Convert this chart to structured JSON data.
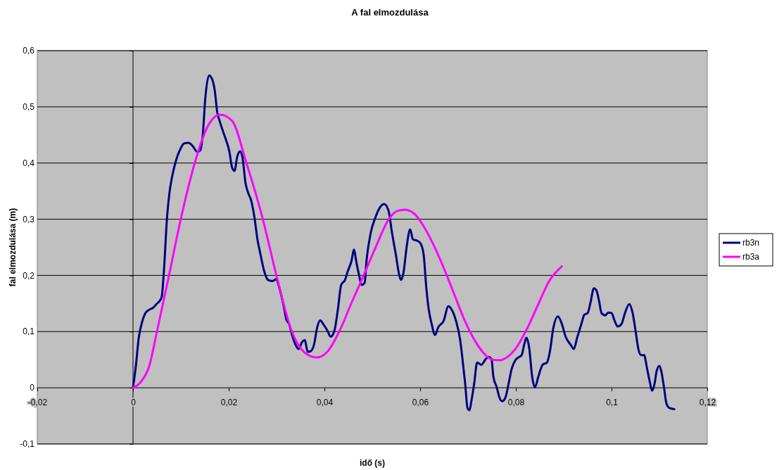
{
  "chart_data": {
    "type": "line",
    "title": "A fal elmozdulása",
    "xlabel": "idő (s)",
    "ylabel": "fal elmozdulása (m)",
    "xlim": [
      -0.02,
      0.12
    ],
    "ylim": [
      -0.1,
      0.6
    ],
    "xticks": [
      {
        "value": -0.02,
        "label": "-0,02"
      },
      {
        "value": 0,
        "label": "0"
      },
      {
        "value": 0.02,
        "label": "0,02"
      },
      {
        "value": 0.04,
        "label": "0,04"
      },
      {
        "value": 0.06,
        "label": "0,06"
      },
      {
        "value": 0.08,
        "label": "0,08"
      },
      {
        "value": 0.1,
        "label": "0,1"
      },
      {
        "value": 0.12,
        "label": "0,12"
      }
    ],
    "yticks": [
      {
        "value": -0.1,
        "label": "-0,1"
      },
      {
        "value": 0,
        "label": "0"
      },
      {
        "value": 0.1,
        "label": "0,1"
      },
      {
        "value": 0.2,
        "label": "0,2"
      },
      {
        "value": 0.3,
        "label": "0,3"
      },
      {
        "value": 0.4,
        "label": "0,4"
      },
      {
        "value": 0.5,
        "label": "0,5"
      },
      {
        "value": 0.6,
        "label": "0,6"
      }
    ],
    "grid": "y",
    "ref_lines": [
      {
        "axis": "x",
        "value": 0
      }
    ],
    "legend": "right",
    "marker": "none",
    "line_style": "solid",
    "series": [
      {
        "name": "rb3n",
        "color": "#000080",
        "x": [
          0,
          0.0006,
          0.0012,
          0.0019,
          0.0026,
          0.0034,
          0.0043,
          0.0049,
          0.0056,
          0.006,
          0.0065,
          0.0071,
          0.0076,
          0.0082,
          0.009,
          0.0099,
          0.0107,
          0.0116,
          0.0125,
          0.0134,
          0.014,
          0.0146,
          0.0151,
          0.0159,
          0.0165,
          0.0171,
          0.0176,
          0.0181,
          0.0187,
          0.0196,
          0.0201,
          0.0207,
          0.0212,
          0.0218,
          0.0224,
          0.0229,
          0.0235,
          0.0241,
          0.0247,
          0.0254,
          0.026,
          0.0266,
          0.0274,
          0.0282,
          0.0291,
          0.0299,
          0.0306,
          0.0315,
          0.0321,
          0.0326,
          0.0332,
          0.034,
          0.0346,
          0.0353,
          0.0359,
          0.0365,
          0.0371,
          0.0378,
          0.0385,
          0.0391,
          0.0397,
          0.0406,
          0.0413,
          0.0421,
          0.0428,
          0.0435,
          0.0443,
          0.0449,
          0.0456,
          0.0462,
          0.0466,
          0.0472,
          0.0478,
          0.0484,
          0.0488,
          0.0497,
          0.0506,
          0.0516,
          0.0525,
          0.0534,
          0.0541,
          0.055,
          0.0556,
          0.056,
          0.0565,
          0.0572,
          0.0579,
          0.0585,
          0.0593,
          0.06,
          0.0607,
          0.0613,
          0.0618,
          0.0624,
          0.0631,
          0.0638,
          0.0649,
          0.0659,
          0.0666,
          0.0675,
          0.0684,
          0.069,
          0.0694,
          0.0699,
          0.0703,
          0.0707,
          0.0713,
          0.0719,
          0.0728,
          0.0737,
          0.0743,
          0.0749,
          0.0753,
          0.076,
          0.0766,
          0.0771,
          0.0778,
          0.0785,
          0.0791,
          0.0799,
          0.0807,
          0.0812,
          0.0818,
          0.0822,
          0.0828,
          0.0834,
          0.084,
          0.0847,
          0.0856,
          0.0865,
          0.0871,
          0.0878,
          0.0888,
          0.0896,
          0.0904,
          0.0915,
          0.0921,
          0.0928,
          0.0937,
          0.0943,
          0.095,
          0.0956,
          0.0963,
          0.0968,
          0.0974,
          0.0979,
          0.0987,
          0.0993,
          0.1,
          0.1006,
          0.1013,
          0.1021,
          0.1028,
          0.1037,
          0.1044,
          0.105,
          0.1056,
          0.1062,
          0.1068,
          0.1074,
          0.1079,
          0.1085,
          0.109,
          0.1094,
          0.11,
          0.1104,
          0.1109,
          0.1115,
          0.1121,
          0.1131
        ],
        "values": [
          0,
          0.039,
          0.089,
          0.117,
          0.133,
          0.139,
          0.143,
          0.149,
          0.155,
          0.162,
          0.214,
          0.302,
          0.346,
          0.377,
          0.405,
          0.425,
          0.435,
          0.436,
          0.43,
          0.42,
          0.422,
          0.452,
          0.515,
          0.556,
          0.55,
          0.528,
          0.49,
          0.475,
          0.459,
          0.437,
          0.422,
          0.392,
          0.386,
          0.412,
          0.421,
          0.409,
          0.365,
          0.346,
          0.333,
          0.302,
          0.264,
          0.239,
          0.208,
          0.192,
          0.19,
          0.193,
          0.177,
          0.145,
          0.12,
          0.114,
          0.095,
          0.076,
          0.069,
          0.081,
          0.085,
          0.064,
          0.065,
          0.076,
          0.108,
          0.12,
          0.114,
          0.102,
          0.091,
          0.102,
          0.139,
          0.183,
          0.192,
          0.208,
          0.224,
          0.246,
          0.227,
          0.202,
          0.183,
          0.187,
          0.227,
          0.277,
          0.302,
          0.321,
          0.327,
          0.315,
          0.277,
          0.233,
          0.202,
          0.192,
          0.204,
          0.252,
          0.282,
          0.264,
          0.262,
          0.258,
          0.239,
          0.177,
          0.139,
          0.114,
          0.094,
          0.108,
          0.119,
          0.145,
          0.139,
          0.119,
          0.083,
          0.039,
          0.008,
          -0.036,
          -0.04,
          -0.024,
          0.008,
          0.045,
          0.041,
          0.051,
          0.055,
          0.051,
          0.02,
          0.001,
          -0.018,
          -0.024,
          -0.018,
          0.008,
          0.033,
          0.049,
          0.055,
          0.058,
          0.079,
          0.089,
          0.07,
          0.02,
          0.001,
          0.02,
          0.041,
          0.045,
          0.064,
          0.105,
          0.127,
          0.114,
          0.091,
          0.076,
          0.069,
          0.089,
          0.114,
          0.13,
          0.133,
          0.152,
          0.177,
          0.174,
          0.154,
          0.133,
          0.129,
          0.134,
          0.133,
          0.12,
          0.109,
          0.114,
          0.133,
          0.149,
          0.133,
          0.102,
          0.069,
          0.058,
          0.058,
          0.035,
          0.014,
          -0.005,
          0.008,
          0.029,
          0.039,
          0.029,
          0.004,
          -0.029,
          -0.036,
          -0.038
        ]
      },
      {
        "name": "rb3a",
        "color": "#ff00ff",
        "x": [
          0,
          0.0016,
          0.0034,
          0.005,
          0.0075,
          0.01,
          0.0129,
          0.0156,
          0.0182,
          0.0207,
          0.0237,
          0.0271,
          0.03,
          0.0332,
          0.0357,
          0.0384,
          0.0406,
          0.0431,
          0.0457,
          0.0482,
          0.0509,
          0.0535,
          0.0553,
          0.0568,
          0.059,
          0.0604,
          0.0626,
          0.0649,
          0.0671,
          0.0693,
          0.0715,
          0.0737,
          0.0751,
          0.0766,
          0.0781,
          0.0803,
          0.0825,
          0.0847,
          0.0869,
          0.0896
        ],
        "values": [
          0,
          0.01,
          0.039,
          0.1,
          0.199,
          0.301,
          0.4,
          0.465,
          0.486,
          0.475,
          0.4,
          0.301,
          0.199,
          0.1,
          0.064,
          0.054,
          0.064,
          0.1,
          0.152,
          0.2,
          0.254,
          0.301,
          0.315,
          0.317,
          0.308,
          0.292,
          0.258,
          0.214,
          0.167,
          0.12,
          0.083,
          0.058,
          0.05,
          0.049,
          0.054,
          0.074,
          0.108,
          0.149,
          0.189,
          0.216
        ]
      }
    ]
  }
}
